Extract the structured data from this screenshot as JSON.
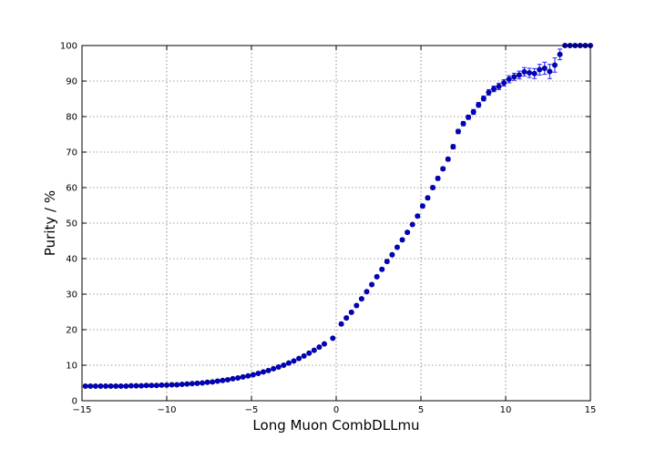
{
  "chart_data": {
    "type": "scatter",
    "title": "",
    "xlabel": "Long Muon CombDLLmu",
    "ylabel": "Purity / %",
    "xlim": [
      -15,
      15
    ],
    "ylim": [
      0,
      100
    ],
    "xticks": [
      -15,
      -10,
      -5,
      0,
      5,
      10,
      15
    ],
    "yticks": [
      0,
      10,
      20,
      30,
      40,
      50,
      60,
      70,
      80,
      90,
      100
    ],
    "grid": true,
    "marker_color": "#0000cc",
    "errorbar_color": "#2020ff",
    "series": [
      {
        "points": [
          {
            "x": -14.8,
            "y": 4.1,
            "err": 0.3
          },
          {
            "x": -14.5,
            "y": 4.1,
            "err": 0.3
          },
          {
            "x": -14.2,
            "y": 4.1,
            "err": 0.3
          },
          {
            "x": -13.9,
            "y": 4.1,
            "err": 0.3
          },
          {
            "x": -13.6,
            "y": 4.1,
            "err": 0.3
          },
          {
            "x": -13.3,
            "y": 4.1,
            "err": 0.3
          },
          {
            "x": -13.0,
            "y": 4.1,
            "err": 0.3
          },
          {
            "x": -12.7,
            "y": 4.1,
            "err": 0.3
          },
          {
            "x": -12.4,
            "y": 4.1,
            "err": 0.3
          },
          {
            "x": -12.1,
            "y": 4.2,
            "err": 0.3
          },
          {
            "x": -11.8,
            "y": 4.2,
            "err": 0.3
          },
          {
            "x": -11.5,
            "y": 4.2,
            "err": 0.3
          },
          {
            "x": -11.2,
            "y": 4.3,
            "err": 0.3
          },
          {
            "x": -10.9,
            "y": 4.3,
            "err": 0.3
          },
          {
            "x": -10.6,
            "y": 4.3,
            "err": 0.3
          },
          {
            "x": -10.3,
            "y": 4.4,
            "err": 0.3
          },
          {
            "x": -10.0,
            "y": 4.4,
            "err": 0.3
          },
          {
            "x": -9.7,
            "y": 4.5,
            "err": 0.3
          },
          {
            "x": -9.4,
            "y": 4.5,
            "err": 0.3
          },
          {
            "x": -9.1,
            "y": 4.6,
            "err": 0.3
          },
          {
            "x": -8.8,
            "y": 4.7,
            "err": 0.3
          },
          {
            "x": -8.5,
            "y": 4.8,
            "err": 0.3
          },
          {
            "x": -8.2,
            "y": 4.9,
            "err": 0.3
          },
          {
            "x": -7.9,
            "y": 5.0,
            "err": 0.3
          },
          {
            "x": -7.6,
            "y": 5.2,
            "err": 0.3
          },
          {
            "x": -7.3,
            "y": 5.3,
            "err": 0.3
          },
          {
            "x": -7.0,
            "y": 5.5,
            "err": 0.3
          },
          {
            "x": -6.7,
            "y": 5.7,
            "err": 0.3
          },
          {
            "x": -6.4,
            "y": 5.9,
            "err": 0.3
          },
          {
            "x": -6.1,
            "y": 6.2,
            "err": 0.3
          },
          {
            "x": -5.8,
            "y": 6.4,
            "err": 0.3
          },
          {
            "x": -5.5,
            "y": 6.7,
            "err": 0.3
          },
          {
            "x": -5.2,
            "y": 7.0,
            "err": 0.3
          },
          {
            "x": -4.9,
            "y": 7.3,
            "err": 0.3
          },
          {
            "x": -4.6,
            "y": 7.7,
            "err": 0.3
          },
          {
            "x": -4.3,
            "y": 8.1,
            "err": 0.3
          },
          {
            "x": -4.0,
            "y": 8.5,
            "err": 0.3
          },
          {
            "x": -3.7,
            "y": 9.0,
            "err": 0.3
          },
          {
            "x": -3.4,
            "y": 9.5,
            "err": 0.3
          },
          {
            "x": -3.1,
            "y": 10.0,
            "err": 0.3
          },
          {
            "x": -2.8,
            "y": 10.6,
            "err": 0.3
          },
          {
            "x": -2.5,
            "y": 11.2,
            "err": 0.3
          },
          {
            "x": -2.2,
            "y": 11.9,
            "err": 0.3
          },
          {
            "x": -1.9,
            "y": 12.6,
            "err": 0.3
          },
          {
            "x": -1.6,
            "y": 13.4,
            "err": 0.3
          },
          {
            "x": -1.3,
            "y": 14.2,
            "err": 0.3
          },
          {
            "x": -1.0,
            "y": 15.1,
            "err": 0.3
          },
          {
            "x": -0.7,
            "y": 16.0,
            "err": 0.3
          },
          {
            "x": -0.2,
            "y": 17.6,
            "err": 0.3
          },
          {
            "x": 0.3,
            "y": 21.6,
            "err": 0.4
          },
          {
            "x": 0.6,
            "y": 23.3,
            "err": 0.4
          },
          {
            "x": 0.9,
            "y": 24.9,
            "err": 0.4
          },
          {
            "x": 1.2,
            "y": 26.8,
            "err": 0.4
          },
          {
            "x": 1.5,
            "y": 28.7,
            "err": 0.4
          },
          {
            "x": 1.8,
            "y": 30.7,
            "err": 0.4
          },
          {
            "x": 2.1,
            "y": 32.7,
            "err": 0.4
          },
          {
            "x": 2.4,
            "y": 34.9,
            "err": 0.4
          },
          {
            "x": 2.7,
            "y": 37.0,
            "err": 0.4
          },
          {
            "x": 3.0,
            "y": 39.2,
            "err": 0.4
          },
          {
            "x": 3.3,
            "y": 41.1,
            "err": 0.4
          },
          {
            "x": 3.6,
            "y": 43.2,
            "err": 0.4
          },
          {
            "x": 3.9,
            "y": 45.3,
            "err": 0.4
          },
          {
            "x": 4.2,
            "y": 47.4,
            "err": 0.4
          },
          {
            "x": 4.5,
            "y": 49.6,
            "err": 0.4
          },
          {
            "x": 4.8,
            "y": 52.0,
            "err": 0.4
          },
          {
            "x": 5.1,
            "y": 54.8,
            "err": 0.5
          },
          {
            "x": 5.4,
            "y": 57.1,
            "err": 0.5
          },
          {
            "x": 5.7,
            "y": 60.0,
            "err": 0.5
          },
          {
            "x": 6.0,
            "y": 62.6,
            "err": 0.5
          },
          {
            "x": 6.3,
            "y": 65.3,
            "err": 0.5
          },
          {
            "x": 6.6,
            "y": 68.0,
            "err": 0.5
          },
          {
            "x": 6.9,
            "y": 71.5,
            "err": 0.6
          },
          {
            "x": 7.2,
            "y": 75.8,
            "err": 0.6
          },
          {
            "x": 7.5,
            "y": 78.0,
            "err": 0.6
          },
          {
            "x": 7.8,
            "y": 79.8,
            "err": 0.6
          },
          {
            "x": 8.1,
            "y": 81.3,
            "err": 0.7
          },
          {
            "x": 8.4,
            "y": 83.3,
            "err": 0.7
          },
          {
            "x": 8.7,
            "y": 85.1,
            "err": 0.7
          },
          {
            "x": 9.0,
            "y": 86.8,
            "err": 0.8
          },
          {
            "x": 9.3,
            "y": 87.8,
            "err": 0.8
          },
          {
            "x": 9.6,
            "y": 88.5,
            "err": 0.9
          },
          {
            "x": 9.9,
            "y": 89.5,
            "err": 0.9
          },
          {
            "x": 10.2,
            "y": 90.5,
            "err": 1.0
          },
          {
            "x": 10.5,
            "y": 91.2,
            "err": 1.0
          },
          {
            "x": 10.8,
            "y": 91.7,
            "err": 1.1
          },
          {
            "x": 11.1,
            "y": 92.6,
            "err": 1.2
          },
          {
            "x": 11.4,
            "y": 92.3,
            "err": 1.3
          },
          {
            "x": 11.7,
            "y": 92.1,
            "err": 1.4
          },
          {
            "x": 12.0,
            "y": 93.2,
            "err": 1.5
          },
          {
            "x": 12.3,
            "y": 93.6,
            "err": 1.7
          },
          {
            "x": 12.6,
            "y": 92.7,
            "err": 2.0
          },
          {
            "x": 12.9,
            "y": 94.5,
            "err": 2.0
          },
          {
            "x": 13.2,
            "y": 97.5,
            "err": 1.5
          },
          {
            "x": 13.5,
            "y": 100.0,
            "err": 0.3
          },
          {
            "x": 13.8,
            "y": 100.0,
            "err": 0.3
          },
          {
            "x": 14.1,
            "y": 100.0,
            "err": 0.3
          },
          {
            "x": 14.4,
            "y": 100.0,
            "err": 0.3
          },
          {
            "x": 14.7,
            "y": 100.0,
            "err": 0.3
          },
          {
            "x": 15.0,
            "y": 100.0,
            "err": 0.3
          }
        ]
      }
    ]
  }
}
